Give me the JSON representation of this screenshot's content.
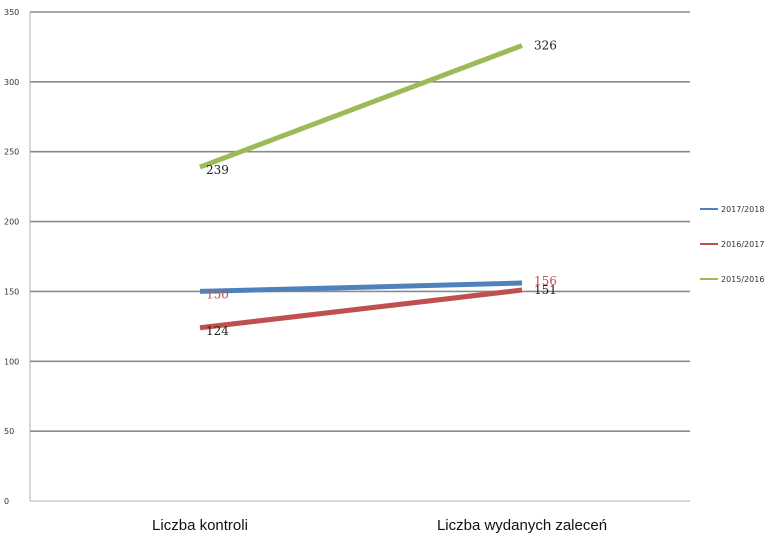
{
  "chart_data": {
    "type": "line",
    "categories": [
      "Liczba kontroli",
      "Liczba wydanych zaleceń"
    ],
    "series": [
      {
        "name": "2017/2018",
        "values": [
          150,
          156
        ],
        "color": "#4f81bd",
        "label_color": "#c0504d"
      },
      {
        "name": "2016/2017",
        "values": [
          124,
          151
        ],
        "color": "#c0504d",
        "label_color": "#222222"
      },
      {
        "name": "2015/2016",
        "values": [
          239,
          326
        ],
        "color": "#9bbb59",
        "label_color": "#222222"
      }
    ],
    "ylim": [
      0,
      350
    ],
    "yticks": [
      "0",
      "50",
      "100",
      "150",
      "200",
      "250",
      "300",
      "350"
    ],
    "grid": true,
    "legend_position": "right",
    "data_labels": true
  }
}
